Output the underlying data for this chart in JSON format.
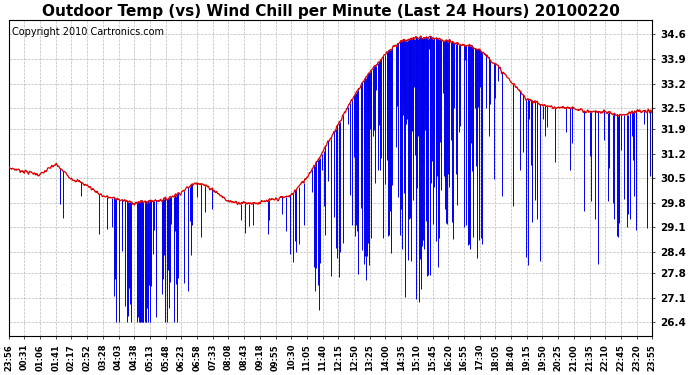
{
  "title": "Outdoor Temp (vs) Wind Chill per Minute (Last 24 Hours) 20100220",
  "copyright": "Copyright 2010 Cartronics.com",
  "yticks": [
    26.4,
    27.1,
    27.8,
    28.4,
    29.1,
    29.8,
    30.5,
    31.2,
    31.9,
    32.5,
    33.2,
    33.9,
    34.6
  ],
  "ylim": [
    26.0,
    35.0
  ],
  "xtick_labels": [
    "23:56",
    "00:31",
    "01:06",
    "01:41",
    "02:17",
    "02:52",
    "03:28",
    "04:03",
    "04:38",
    "05:13",
    "05:48",
    "06:23",
    "06:58",
    "07:33",
    "08:08",
    "08:43",
    "09:18",
    "09:55",
    "10:30",
    "11:05",
    "11:40",
    "12:15",
    "12:50",
    "13:25",
    "14:00",
    "14:35",
    "15:10",
    "15:45",
    "16:20",
    "16:55",
    "17:30",
    "18:05",
    "18:40",
    "19:15",
    "19:50",
    "20:25",
    "21:00",
    "21:35",
    "22:10",
    "22:45",
    "23:20",
    "23:55"
  ],
  "bg_color": "#ffffff",
  "grid_color": "#bbbbbb",
  "red_line_color": "#dd0000",
  "blue_bar_color": "#0000ee",
  "title_fontsize": 11,
  "copyright_fontsize": 7,
  "red_waypoints_t": [
    0,
    35,
    70,
    105,
    140,
    175,
    210,
    245,
    280,
    315,
    350,
    385,
    420,
    455,
    490,
    525,
    560,
    595,
    630,
    665,
    700,
    735,
    770,
    805,
    840,
    875,
    910,
    945,
    980,
    1015,
    1050,
    1085,
    1120,
    1155,
    1190,
    1225,
    1260,
    1295,
    1330,
    1365,
    1400,
    1440
  ],
  "red_waypoints_v": [
    30.8,
    30.7,
    30.6,
    30.9,
    30.5,
    30.3,
    30.0,
    29.9,
    29.8,
    29.85,
    29.9,
    30.1,
    30.4,
    30.2,
    29.85,
    29.8,
    29.8,
    29.9,
    30.0,
    30.5,
    31.2,
    32.0,
    32.8,
    33.5,
    34.0,
    34.4,
    34.5,
    34.5,
    34.4,
    34.3,
    34.2,
    33.8,
    33.3,
    32.8,
    32.6,
    32.5,
    32.5,
    32.4,
    32.4,
    32.3,
    32.4,
    32.4
  ],
  "n_points": 1440
}
